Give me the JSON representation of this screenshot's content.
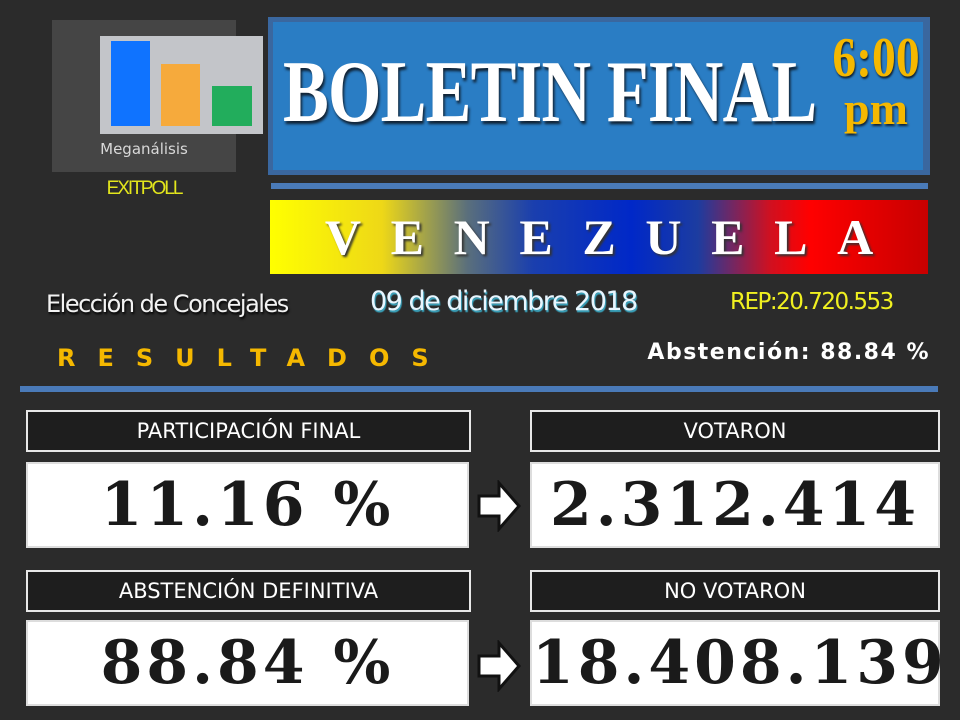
{
  "logo": {
    "name": "Meganálisis",
    "subtitle": "EXITPOLL",
    "bar_colors": [
      "#0f73ff",
      "#f6aa3c",
      "#22ad5c"
    ]
  },
  "header": {
    "title": "BOLETIN FINAL",
    "time": "6:00",
    "ampm": "pm"
  },
  "country": {
    "letters": [
      "V",
      "E",
      "N",
      "E",
      "Z",
      "U",
      "E",
      "L",
      "A"
    ]
  },
  "info": {
    "election": "Elección de Concejales",
    "date": "09 de diciembre 2018",
    "rep": "REP:20.720.553",
    "results": "RESULTADOS",
    "abstention": "Abstención: 88.84 %"
  },
  "stats": [
    {
      "label": "PARTICIPACIÓN FINAL",
      "value": "11.16 %"
    },
    {
      "label": "VOTARON",
      "value": "2.312.414"
    },
    {
      "label": "ABSTENCIÓN DEFINITIVA",
      "value": "88.84 %"
    },
    {
      "label": "NO VOTARON",
      "value": "18.408.139"
    }
  ],
  "colors": {
    "background": "#2b2b2b",
    "title_blue": "#2a7dc4",
    "gold": "#f5b800",
    "yellow": "#f0f020"
  }
}
